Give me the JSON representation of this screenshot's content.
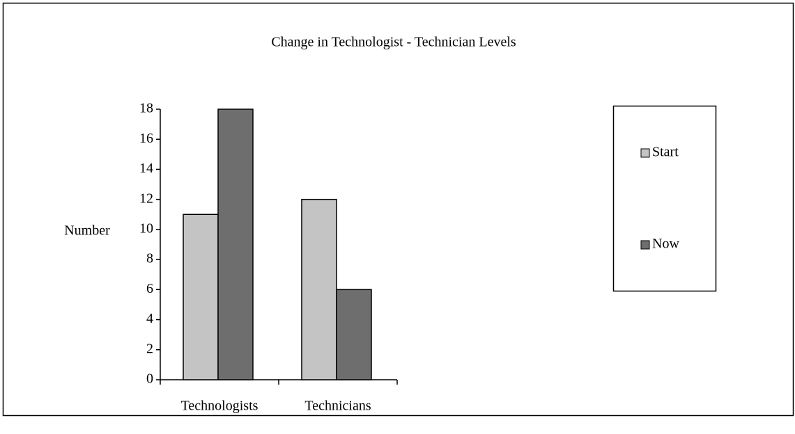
{
  "chart_data": {
    "type": "bar",
    "title": "Change in Technologist - Technician Levels",
    "y_label": "Number",
    "categories": [
      "Technologists",
      "Technicians"
    ],
    "series": [
      {
        "name": "Start",
        "color": "#c4c4c4",
        "values": [
          11,
          12
        ]
      },
      {
        "name": "Now",
        "color": "#6e6e6e",
        "values": [
          18,
          6
        ]
      }
    ],
    "ylim": [
      0,
      18
    ],
    "yticks": [
      0,
      2,
      4,
      6,
      8,
      10,
      12,
      14,
      16,
      18
    ],
    "grid": false,
    "legend": "right"
  }
}
